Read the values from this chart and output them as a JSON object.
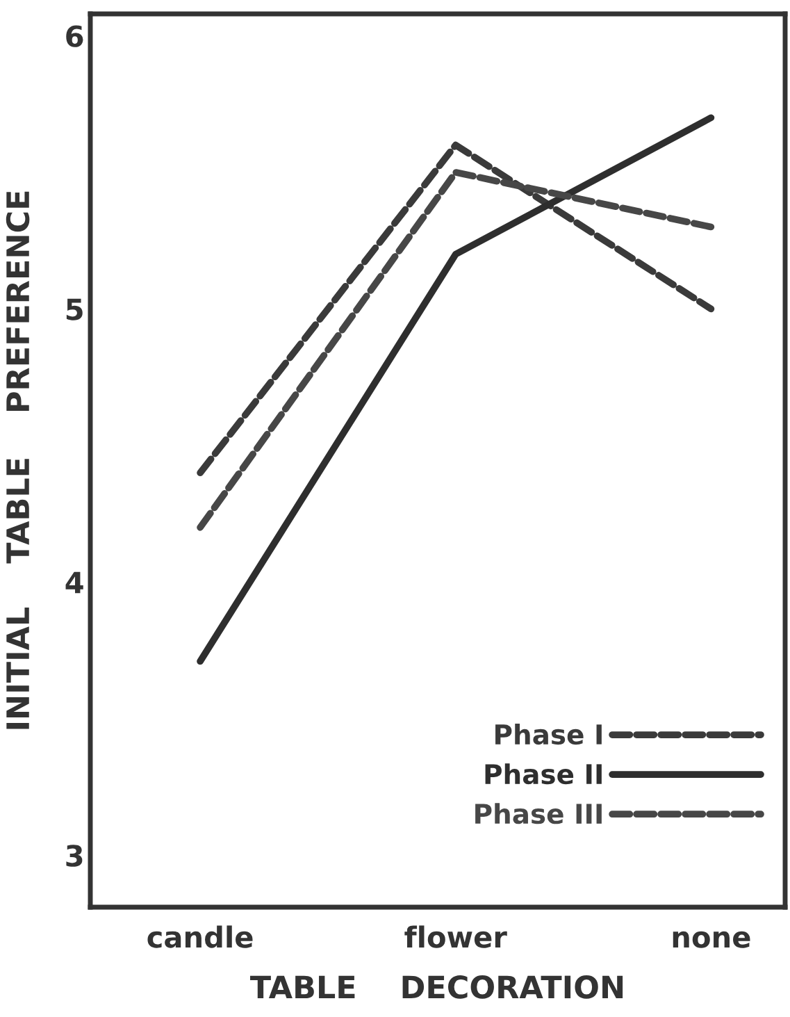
{
  "chart_data": {
    "type": "line",
    "xlabel": "TABLE    DECORATION",
    "ylabel": "INITIAL    TABLE    PREFERENCE",
    "categories": [
      "candle",
      "flower",
      "none"
    ],
    "series": [
      {
        "name": "Phase I",
        "color": "#3a3a3a",
        "line_style": "dashed",
        "values": [
          4.4,
          5.6,
          5.0
        ]
      },
      {
        "name": "Phase II",
        "color": "#2e2e2e",
        "line_style": "solid",
        "values": [
          3.71,
          5.2,
          5.7
        ]
      },
      {
        "name": "Phase III",
        "color": "#474747",
        "line_style": "dashed",
        "values": [
          4.2,
          5.5,
          5.3
        ]
      }
    ],
    "ylim": [
      2.81,
      6.08
    ],
    "yticks": [
      3,
      4,
      5,
      6
    ],
    "grid": false,
    "legend": "bottom right",
    "marker": "none"
  }
}
